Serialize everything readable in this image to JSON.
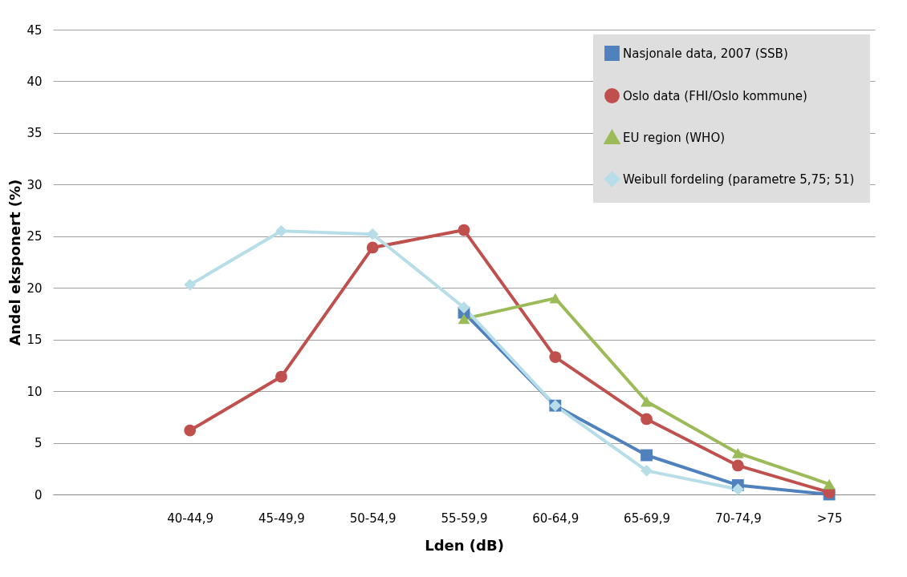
{
  "chart_data": {
    "type": "line",
    "xlabel": "Lden (dB)",
    "ylabel": "Andel eksponert (%)",
    "categories": [
      null,
      "40-44,9",
      "45-49,9",
      "50-54,9",
      "55-59,9",
      "60-64,9",
      "65-69,9",
      "70-74,9",
      ">75"
    ],
    "ylim": [
      0,
      45
    ],
    "yticks": [
      0,
      5,
      10,
      15,
      20,
      25,
      30,
      35,
      40,
      45
    ],
    "grid": "y",
    "legend": "top right",
    "line_style": "solid",
    "series": [
      {
        "name": "Nasjonale data, 2007 (SSB)",
        "color": "#4f81bd",
        "marker": "square",
        "values": [
          null,
          null,
          null,
          null,
          17.6,
          8.6,
          3.8,
          0.9,
          0.0
        ]
      },
      {
        "name": "Oslo data (FHI/Oslo kommune)",
        "color": "#c0504d",
        "marker": "circle",
        "values": [
          null,
          6.2,
          11.4,
          23.9,
          25.6,
          13.3,
          7.3,
          2.8,
          0.2
        ]
      },
      {
        "name": "EU region (WHO)",
        "color": "#9bbb59",
        "marker": "triangle",
        "values": [
          null,
          null,
          null,
          null,
          17.0,
          19.0,
          9.0,
          4.0,
          1.0
        ]
      },
      {
        "name": "Weibull fordeling (parametre  5,75; 51)",
        "color": "#b7dee8",
        "marker": "diamond",
        "values": [
          null,
          20.3,
          25.5,
          25.2,
          18.1,
          8.6,
          2.3,
          0.5,
          null
        ]
      }
    ]
  }
}
